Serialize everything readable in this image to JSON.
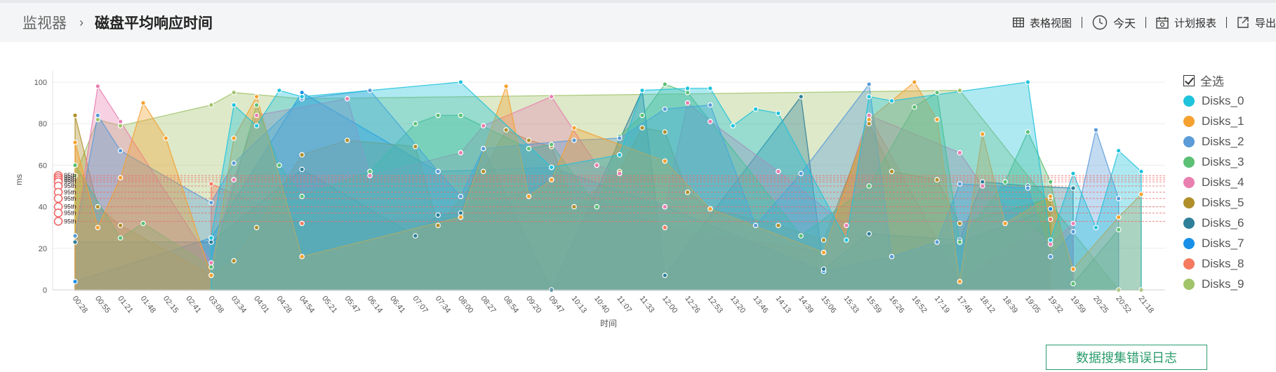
{
  "breadcrumb": {
    "root": "监视器",
    "separator": "›",
    "title": "磁盘平均响应时间"
  },
  "toolbar": {
    "table_view": "表格视图",
    "today": "今天",
    "scheduled_report": "计划报表",
    "export": "导出"
  },
  "legend": {
    "select_all": "全选"
  },
  "error_log_button": "数据搜集错误日志",
  "chart_data": {
    "type": "area",
    "xlabel": "时间",
    "ylabel": "ms",
    "ylim": [
      0,
      100
    ],
    "yticks": [
      0,
      20,
      40,
      60,
      80,
      100
    ],
    "grid": true,
    "legend_position": "right",
    "categories": [
      "00:28",
      "00:55",
      "01:21",
      "01:48",
      "02:15",
      "02:41",
      "03:08",
      "03:34",
      "04:01",
      "04:28",
      "04:54",
      "05:21",
      "05:47",
      "06:14",
      "06:41",
      "07:07",
      "07:34",
      "08:00",
      "08:27",
      "08:54",
      "09:20",
      "09:47",
      "10:13",
      "10:40",
      "11:07",
      "11:33",
      "12:00",
      "12:26",
      "12:53",
      "13:20",
      "13:46",
      "14:13",
      "14:39",
      "15:06",
      "15:33",
      "15:59",
      "16:26",
      "16:52",
      "17:19",
      "17:46",
      "18:12",
      "18:39",
      "19:05",
      "19:32",
      "19:59",
      "20:25",
      "20:52",
      "21:18"
    ],
    "percentile_markers": {
      "label": "95th",
      "count": 10
    },
    "series": [
      {
        "name": "Disks_0",
        "color": "#1ec3dc",
        "points": [
          [
            6,
            25
          ],
          [
            7,
            89
          ],
          [
            8,
            79
          ],
          [
            9,
            96
          ],
          [
            10,
            93
          ],
          [
            17,
            100
          ],
          [
            21,
            59
          ],
          [
            24,
            65
          ],
          [
            25,
            96
          ],
          [
            27,
            97
          ],
          [
            28,
            97
          ],
          [
            29,
            79
          ],
          [
            30,
            87
          ],
          [
            31,
            85
          ],
          [
            34,
            24
          ],
          [
            35,
            93
          ],
          [
            36,
            91
          ],
          [
            42,
            100
          ],
          [
            43,
            24
          ],
          [
            44,
            56
          ],
          [
            45,
            30
          ],
          [
            46,
            67
          ],
          [
            47,
            57
          ]
        ],
        "p95": 55
      },
      {
        "name": "Disks_1",
        "color": "#f4a130",
        "points": [
          [
            0,
            71
          ],
          [
            1,
            30
          ],
          [
            2,
            54
          ],
          [
            3,
            90
          ],
          [
            4,
            73
          ],
          [
            6,
            7
          ],
          [
            7,
            73
          ],
          [
            8,
            93
          ],
          [
            10,
            16
          ],
          [
            17,
            35
          ],
          [
            19,
            98
          ],
          [
            20,
            45
          ],
          [
            21,
            53
          ],
          [
            22,
            78
          ],
          [
            26,
            62
          ],
          [
            28,
            39
          ],
          [
            33,
            18
          ],
          [
            35,
            82
          ],
          [
            37,
            100
          ],
          [
            38,
            82
          ],
          [
            39,
            4
          ],
          [
            40,
            75
          ],
          [
            41,
            32
          ],
          [
            43,
            45
          ],
          [
            44,
            10
          ],
          [
            46,
            35
          ],
          [
            47,
            46
          ]
        ],
        "p95": 54
      },
      {
        "name": "Disks_2",
        "color": "#5a9bd8",
        "points": [
          [
            0,
            26
          ],
          [
            1,
            84
          ],
          [
            2,
            67
          ],
          [
            6,
            42
          ],
          [
            7,
            61
          ],
          [
            10,
            92
          ],
          [
            13,
            96
          ],
          [
            16,
            57
          ],
          [
            17,
            45
          ],
          [
            18,
            68
          ],
          [
            22,
            72
          ],
          [
            24,
            73
          ],
          [
            26,
            87
          ],
          [
            28,
            89
          ],
          [
            30,
            31
          ],
          [
            32,
            56
          ],
          [
            35,
            99
          ],
          [
            36,
            16
          ],
          [
            38,
            23
          ],
          [
            39,
            51
          ],
          [
            42,
            49
          ],
          [
            43,
            16
          ],
          [
            44,
            28
          ],
          [
            45,
            77
          ],
          [
            46,
            44
          ]
        ],
        "p95": 53
      },
      {
        "name": "Disks_3",
        "color": "#5cc075",
        "points": [
          [
            0,
            60
          ],
          [
            2,
            25
          ],
          [
            3,
            32
          ],
          [
            6,
            11
          ],
          [
            8,
            89
          ],
          [
            9,
            60
          ],
          [
            10,
            45
          ],
          [
            13,
            57
          ],
          [
            15,
            80
          ],
          [
            16,
            84
          ],
          [
            17,
            84
          ],
          [
            20,
            68
          ],
          [
            21,
            70
          ],
          [
            23,
            40
          ],
          [
            24,
            74
          ],
          [
            25,
            84
          ],
          [
            26,
            99
          ],
          [
            27,
            95
          ],
          [
            32,
            26
          ],
          [
            35,
            50
          ],
          [
            37,
            88
          ],
          [
            38,
            95
          ],
          [
            39,
            23
          ],
          [
            41,
            52
          ],
          [
            42,
            76
          ],
          [
            43,
            52
          ],
          [
            44,
            3
          ],
          [
            46,
            29
          ]
        ],
        "p95": 52
      },
      {
        "name": "Disks_4",
        "color": "#e97fb0",
        "points": [
          [
            0,
            26
          ],
          [
            1,
            98
          ],
          [
            2,
            81
          ],
          [
            6,
            13
          ],
          [
            7,
            53
          ],
          [
            8,
            84
          ],
          [
            12,
            92
          ],
          [
            13,
            55
          ],
          [
            17,
            66
          ],
          [
            18,
            79
          ],
          [
            21,
            93
          ],
          [
            23,
            60
          ],
          [
            24,
            56
          ],
          [
            26,
            40
          ],
          [
            27,
            90
          ],
          [
            28,
            81
          ],
          [
            31,
            57
          ],
          [
            34,
            31
          ],
          [
            35,
            84
          ],
          [
            39,
            66
          ],
          [
            40,
            50
          ],
          [
            43,
            22
          ],
          [
            44,
            32
          ]
        ],
        "p95": 50
      },
      {
        "name": "Disks_5",
        "color": "#b08f2a",
        "points": [
          [
            0,
            84
          ],
          [
            1,
            40
          ],
          [
            2,
            31
          ],
          [
            6,
            7
          ],
          [
            7,
            14
          ],
          [
            8,
            30
          ],
          [
            10,
            65
          ],
          [
            12,
            72
          ],
          [
            15,
            69
          ],
          [
            16,
            31
          ],
          [
            18,
            57
          ],
          [
            19,
            77
          ],
          [
            20,
            72
          ],
          [
            21,
            69
          ],
          [
            22,
            40
          ],
          [
            24,
            57
          ],
          [
            25,
            78
          ],
          [
            26,
            76
          ],
          [
            27,
            47
          ],
          [
            28,
            39
          ],
          [
            31,
            31
          ],
          [
            33,
            24
          ],
          [
            35,
            80
          ],
          [
            36,
            57
          ],
          [
            38,
            53
          ],
          [
            39,
            32
          ],
          [
            43,
            44
          ]
        ],
        "p95": 47
      },
      {
        "name": "Disks_6",
        "color": "#2e7f98",
        "points": [
          [
            0,
            23
          ],
          [
            6,
            23
          ],
          [
            10,
            58
          ],
          [
            15,
            26
          ],
          [
            16,
            36
          ],
          [
            17,
            37
          ],
          [
            18,
            68
          ],
          [
            21,
            0
          ],
          [
            25,
            96
          ],
          [
            26,
            7
          ],
          [
            32,
            93
          ],
          [
            33,
            10
          ],
          [
            35,
            27
          ],
          [
            39,
            24
          ],
          [
            40,
            52
          ],
          [
            42,
            50
          ],
          [
            44,
            49
          ]
        ],
        "p95": 44
      },
      {
        "name": "Disks_7",
        "color": "#1890e8",
        "points": [
          [
            0,
            4
          ],
          [
            6,
            25
          ],
          [
            10,
            95
          ],
          [
            16,
            57
          ],
          [
            21,
            59
          ],
          [
            26,
            40
          ],
          [
            33,
            9
          ],
          [
            39,
            23
          ],
          [
            43,
            39
          ]
        ],
        "p95": 40
      },
      {
        "name": "Disks_8",
        "color": "#f57a5f",
        "points": [
          [
            6,
            51
          ],
          [
            10,
            32
          ],
          [
            17,
            35
          ],
          [
            21,
            53
          ],
          [
            26,
            30
          ],
          [
            33,
            18
          ],
          [
            35,
            84
          ],
          [
            39,
            4
          ],
          [
            43,
            34
          ]
        ],
        "p95": 37
      },
      {
        "name": "Disks_9",
        "color": "#a1c36a",
        "points": [
          [
            0,
            55
          ],
          [
            1,
            82
          ],
          [
            2,
            79
          ],
          [
            6,
            89
          ],
          [
            7,
            95
          ],
          [
            10,
            92
          ],
          [
            39,
            96
          ],
          [
            46,
            0
          ],
          [
            47,
            0
          ]
        ],
        "p95": 33
      }
    ]
  }
}
